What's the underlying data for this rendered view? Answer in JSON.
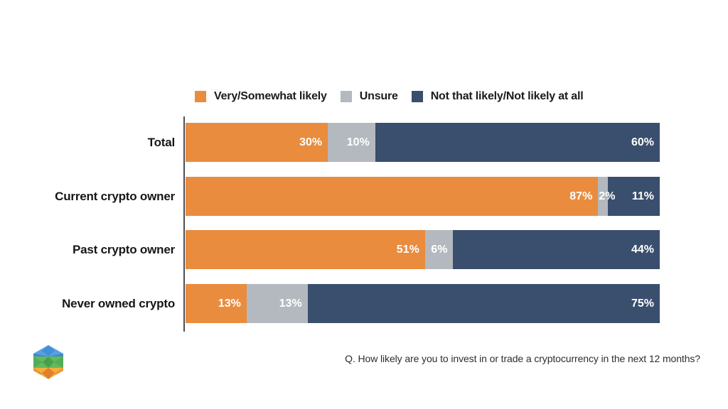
{
  "legend": {
    "items": [
      {
        "label": "Very/Somewhat likely",
        "color": "#E98C3E"
      },
      {
        "label": "Unsure",
        "color": "#B4B9BF"
      },
      {
        "label": "Not that likely/Not likely at all",
        "color": "#3A4E6E"
      }
    ]
  },
  "chart_data": {
    "type": "bar",
    "orientation": "horizontal",
    "stacked": true,
    "stack_total": "percent_normalized",
    "categories": [
      "Total",
      "Current crypto owner",
      "Past crypto owner",
      "Never owned crypto"
    ],
    "series": [
      {
        "name": "Very/Somewhat likely",
        "color": "#E98C3E",
        "values": [
          30,
          87,
          51,
          13
        ]
      },
      {
        "name": "Unsure",
        "color": "#B4B9BF",
        "values": [
          10,
          2,
          6,
          13
        ]
      },
      {
        "name": "Not that likely/Not likely at all",
        "color": "#3A4E6E",
        "values": [
          60,
          11,
          44,
          75
        ]
      }
    ],
    "value_suffix": "%",
    "value_label_color": "#ffffff",
    "legend_position": "top",
    "grid": false,
    "title": "",
    "xlabel": "",
    "ylabel": ""
  },
  "footer": {
    "question": "Q. How likely are you to invest in or trade a cryptocurrency in the next 12 months?"
  },
  "logo": {
    "name": "cube-hexagon-logo",
    "colors": {
      "blue_light": "#57A1E2",
      "blue_dark": "#3F87CF",
      "green_light": "#62B95E",
      "green_mid": "#54AD55",
      "green_dark": "#47A04B",
      "yellow": "#F1AF3E",
      "orange_mid": "#EA9737",
      "orange_dark": "#E07F2E"
    }
  },
  "layout_hints": {
    "row_tops": [
      173,
      249,
      324,
      400
    ]
  }
}
